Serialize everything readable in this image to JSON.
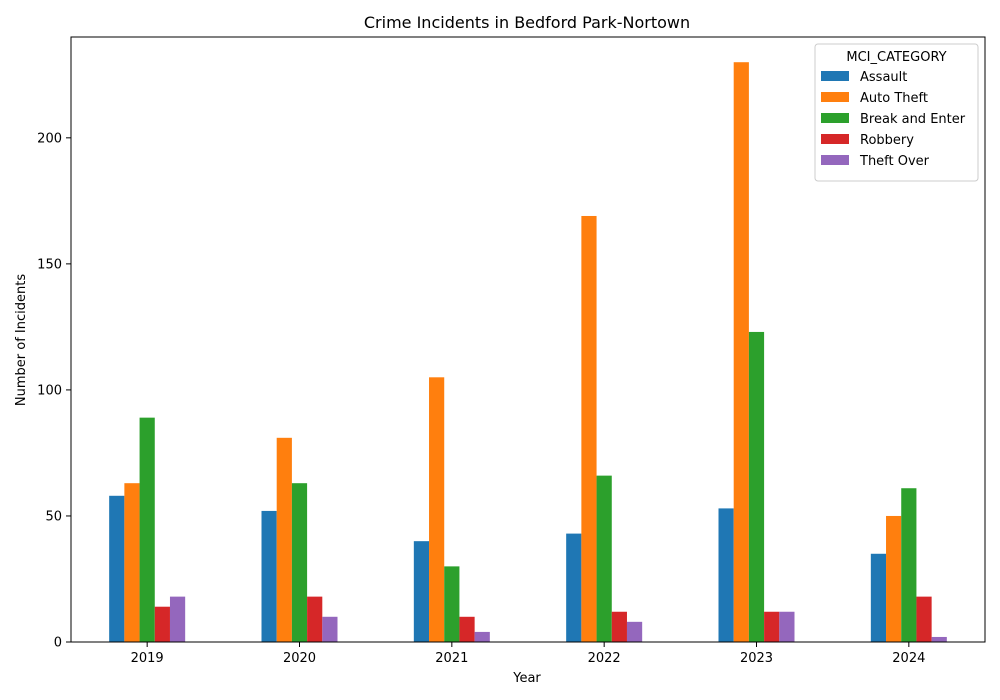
{
  "chart_data": {
    "type": "bar",
    "title": "Crime Incidents in Bedford Park-Nortown",
    "xlabel": "Year",
    "ylabel": "Number of Incidents",
    "categories": [
      "2019",
      "2020",
      "2021",
      "2022",
      "2023",
      "2024"
    ],
    "ylim": [
      0,
      240
    ],
    "yticks": [
      0,
      50,
      100,
      150,
      200
    ],
    "grid": false,
    "legend": {
      "title": "MCI_CATEGORY",
      "placement": "top-right"
    },
    "series": [
      {
        "name": "Assault",
        "color": "#1f77b4",
        "values": [
          58,
          52,
          40,
          43,
          53,
          35
        ]
      },
      {
        "name": "Auto Theft",
        "color": "#ff7f0e",
        "values": [
          63,
          81,
          105,
          169,
          230,
          50
        ]
      },
      {
        "name": "Break and Enter",
        "color": "#2ca02c",
        "values": [
          89,
          63,
          30,
          66,
          123,
          61
        ]
      },
      {
        "name": "Robbery",
        "color": "#d62728",
        "values": [
          14,
          18,
          10,
          12,
          12,
          18
        ]
      },
      {
        "name": "Theft Over",
        "color": "#9467bd",
        "values": [
          18,
          10,
          4,
          8,
          12,
          2
        ]
      }
    ]
  }
}
